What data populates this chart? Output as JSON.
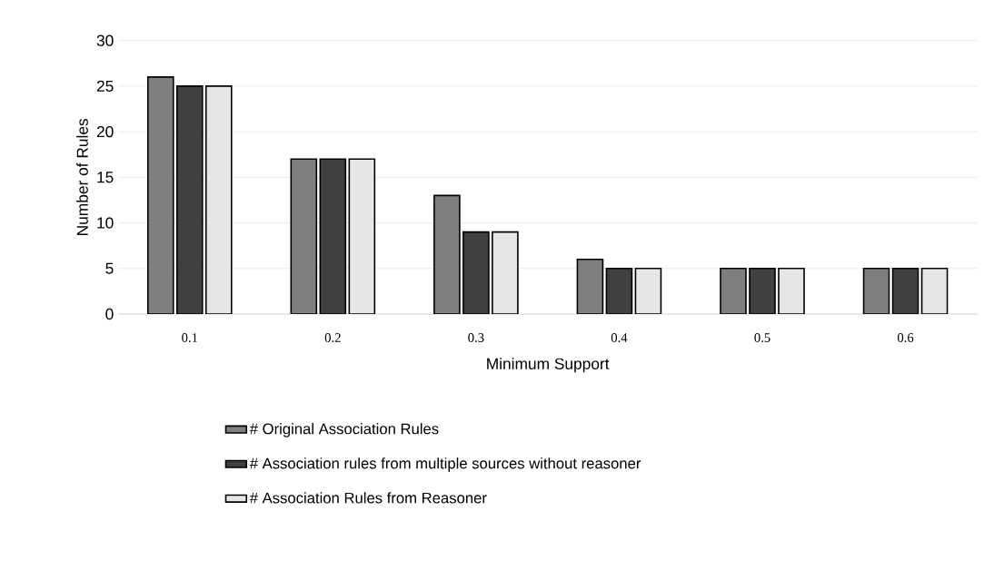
{
  "chart_data": {
    "type": "bar",
    "xlabel": "Minimum Support",
    "ylabel": "Number of Rules",
    "categories": [
      "0.1",
      "0.2",
      "0.3",
      "0.4",
      "0.5",
      "0.6"
    ],
    "series": [
      {
        "name": "# Original Association Rules",
        "color": "#7f7f7f",
        "values": [
          26,
          17,
          13,
          6,
          5,
          5
        ]
      },
      {
        "name": "# Association rules from multiple sources without reasoner",
        "color": "#404040",
        "values": [
          25,
          17,
          9,
          5,
          5,
          5
        ]
      },
      {
        "name": "# Association Rules from Reasoner",
        "color": "#e6e6e6",
        "values": [
          25,
          17,
          9,
          5,
          5,
          5
        ]
      }
    ],
    "ylim": [
      0,
      30
    ],
    "yticks": [
      0,
      5,
      10,
      15,
      20,
      25,
      30
    ],
    "grid": "y",
    "legend": "bottom"
  }
}
